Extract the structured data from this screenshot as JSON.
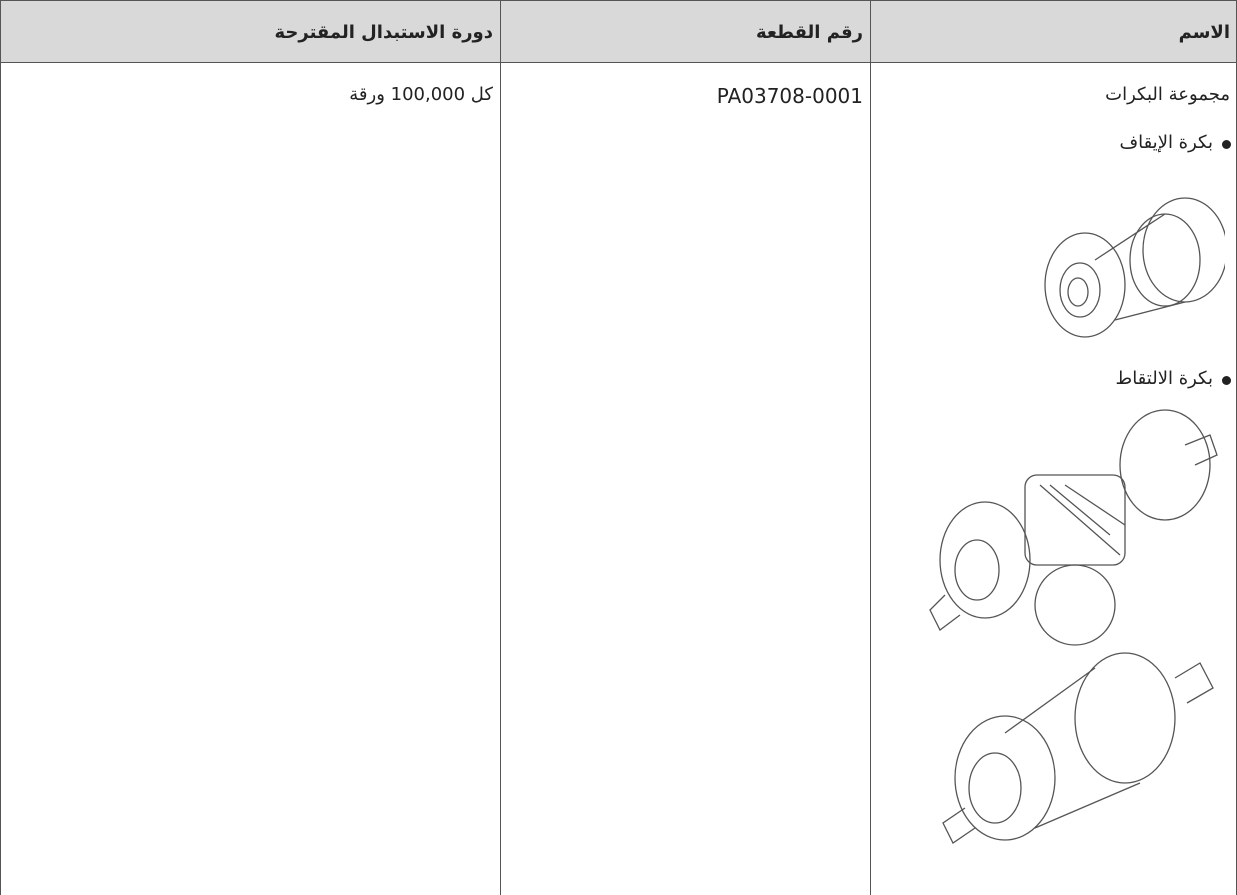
{
  "table": {
    "header": [
      "الاسم",
      "رقم القطعة",
      "دورة الاستبدال المقترحة"
    ],
    "rows": [
      [
        "مجموعة البكرات",
        "PA03708-0001",
        "كل 100,000 ورقة"
      ]
    ],
    "items": [
      "بكرة الإيقاف",
      "بكرة الالتقاط"
    ]
  }
}
